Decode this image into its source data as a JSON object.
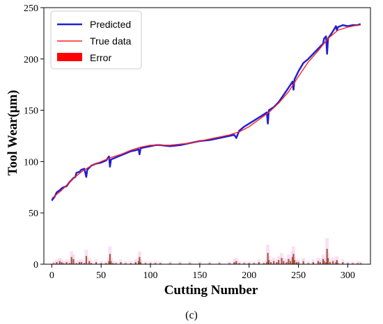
{
  "chart_data": {
    "type": "line",
    "xlabel": "Cutting Number",
    "ylabel": "Tool Wear(μm)",
    "caption": "(c)",
    "xlim": [
      -8,
      323
    ],
    "ylim": [
      0,
      250
    ],
    "xticks": [
      0,
      50,
      100,
      150,
      200,
      250,
      300
    ],
    "yticks": [
      0,
      50,
      100,
      150,
      200,
      250
    ],
    "grid": false,
    "legend_position": "top-left",
    "colors": {
      "predicted": "#1f1fd6",
      "true": "#ff1f1f",
      "error": "#ff0000",
      "error_bar": "#a0522d",
      "error_band": "#f5c6f0"
    },
    "series": [
      {
        "name": "Predicted",
        "type": "line",
        "x": [
          0,
          3,
          5,
          8,
          10,
          12,
          15,
          18,
          20,
          22,
          24,
          25,
          28,
          30,
          33,
          35,
          36,
          38,
          40,
          45,
          50,
          55,
          58,
          59,
          60,
          65,
          70,
          75,
          80,
          85,
          88,
          89,
          90,
          95,
          100,
          105,
          110,
          120,
          130,
          140,
          150,
          160,
          170,
          180,
          185,
          187,
          190,
          195,
          200,
          205,
          210,
          215,
          218,
          219,
          220,
          225,
          230,
          235,
          240,
          244,
          245,
          246,
          250,
          255,
          260,
          265,
          270,
          275,
          276,
          278,
          279,
          280,
          285,
          288,
          289,
          290,
          295,
          300,
          305,
          310,
          313
        ],
        "y": [
          62,
          66,
          70,
          72,
          74,
          75,
          76,
          80,
          82,
          84,
          85,
          89,
          90,
          92,
          93,
          85,
          92,
          94,
          96,
          98,
          99,
          101,
          105,
          95,
          102,
          104,
          106,
          108,
          110,
          111,
          112,
          107,
          113,
          114,
          115,
          116,
          116,
          115,
          116,
          118,
          120,
          121,
          123,
          125,
          126,
          123,
          130,
          134,
          137,
          140,
          143,
          146,
          148,
          137,
          150,
          153,
          158,
          165,
          172,
          178,
          170,
          180,
          188,
          196,
          200,
          205,
          210,
          215,
          220,
          222,
          205,
          220,
          227,
          232,
          228,
          231,
          233,
          232,
          233,
          233,
          234
        ]
      },
      {
        "name": "True data",
        "type": "line",
        "x": [
          0,
          10,
          20,
          30,
          40,
          50,
          60,
          70,
          80,
          90,
          100,
          110,
          120,
          130,
          140,
          150,
          160,
          170,
          180,
          190,
          200,
          210,
          220,
          230,
          240,
          250,
          260,
          270,
          280,
          290,
          300,
          310,
          313
        ],
        "y": [
          64,
          72,
          82,
          90,
          96,
          100,
          104,
          107,
          111,
          114,
          116,
          116,
          116,
          117,
          118,
          120,
          122,
          124,
          126,
          129,
          134,
          141,
          148,
          157,
          168,
          183,
          197,
          208,
          220,
          228,
          231,
          233,
          233
        ]
      },
      {
        "name": "Error",
        "type": "bar",
        "x": [
          2,
          5,
          8,
          10,
          12,
          15,
          18,
          20,
          22,
          25,
          28,
          30,
          33,
          35,
          38,
          40,
          45,
          50,
          55,
          58,
          59,
          60,
          62,
          65,
          70,
          75,
          80,
          85,
          88,
          89,
          90,
          95,
          100,
          105,
          110,
          120,
          130,
          140,
          150,
          160,
          170,
          180,
          185,
          187,
          190,
          195,
          200,
          205,
          210,
          215,
          218,
          219,
          220,
          222,
          225,
          228,
          230,
          233,
          235,
          238,
          240,
          242,
          244,
          245,
          246,
          248,
          250,
          255,
          260,
          265,
          270,
          272,
          275,
          276,
          278,
          279,
          280,
          282,
          285,
          288,
          289,
          290,
          295,
          300,
          305,
          310,
          313
        ],
        "y": [
          1,
          2,
          3,
          2,
          1,
          2,
          1,
          7,
          5,
          1,
          2,
          2,
          1,
          8,
          3,
          1,
          2,
          1,
          1,
          3,
          10,
          3,
          1,
          1,
          2,
          1,
          1,
          2,
          3,
          7,
          2,
          1,
          1,
          1,
          1,
          1,
          1,
          1,
          1,
          1,
          1,
          1,
          2,
          3,
          1,
          1,
          1,
          1,
          2,
          1,
          2,
          11,
          4,
          2,
          3,
          2,
          4,
          6,
          3,
          2,
          5,
          3,
          7,
          10,
          4,
          2,
          2,
          3,
          1,
          2,
          3,
          2,
          5,
          3,
          2,
          15,
          6,
          2,
          3,
          2,
          4,
          1,
          2,
          1,
          1,
          1,
          1
        ]
      }
    ]
  }
}
